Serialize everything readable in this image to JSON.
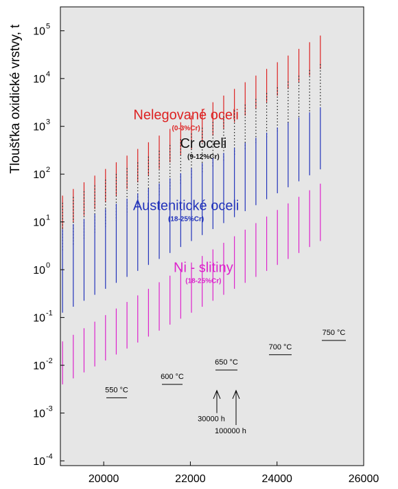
{
  "chart_data": {
    "type": "line",
    "ylabel": "Tloušťka oxidické vrstvy, t",
    "xlabel": "",
    "y_scale": "log",
    "xlim": [
      19000,
      26000
    ],
    "ylim_exp": [
      -4.1,
      5.5
    ],
    "x_ticks": [
      "20000",
      "22000",
      "24000",
      "26000"
    ],
    "y_ticks": [
      {
        "exp": 5,
        "base": "10",
        "sup": "5"
      },
      {
        "exp": 4,
        "base": "10",
        "sup": "4"
      },
      {
        "exp": 3,
        "base": "10",
        "sup": "3"
      },
      {
        "exp": 2,
        "base": "10",
        "sup": "2"
      },
      {
        "exp": 1,
        "base": "10",
        "sup": "1"
      },
      {
        "exp": 0,
        "base": "10",
        "sup": "0"
      },
      {
        "exp": -1,
        "base": "10",
        "sup": "-1"
      },
      {
        "exp": -2,
        "base": "10",
        "sup": "-2"
      },
      {
        "exp": -3,
        "base": "10",
        "sup": "-3"
      },
      {
        "exp": -4,
        "base": "10",
        "sup": "-4"
      }
    ],
    "grid": false,
    "background": "#e6e6e6",
    "band_x_range": [
      19050,
      25000
    ],
    "series": [
      {
        "name": "Nelegované oceli",
        "sub": "(0-3%Cr)",
        "color": "#dd2222",
        "style": "solid",
        "line_count": 25,
        "top_log_start": 1.55,
        "top_log_end": 4.9,
        "bottom_log_start": 0.85,
        "bottom_log_end": 4.2,
        "label_x": 21900,
        "label_log": 3.15
      },
      {
        "name": "Cr oceli",
        "sub": "(9-12%Cr)",
        "color": "#111111",
        "style": "dotted",
        "line_count": 25,
        "top_log_start": 1.4,
        "top_log_end": 4.3,
        "bottom_log_start": 0.4,
        "bottom_log_end": 3.4,
        "label_x": 22300,
        "label_log": 2.55
      },
      {
        "name": "Austenitické oceli",
        "sub": "(18-25%Cr)",
        "color": "#2233bb",
        "style": "solid",
        "line_count": 25,
        "top_log_start": 0.85,
        "top_log_end": 3.4,
        "bottom_log_start": -0.9,
        "bottom_log_end": 2.1,
        "label_x": 21900,
        "label_log": 1.25
      },
      {
        "name": "Ni - slitiny",
        "sub": "(18-25%Cr)",
        "color": "#dd22cc",
        "style": "solid",
        "line_count": 25,
        "top_log_start": -1.5,
        "top_log_end": 1.8,
        "bottom_log_start": -2.4,
        "bottom_log_end": 0.6,
        "label_x": 22300,
        "label_log": -0.05
      }
    ],
    "temperature_markers": [
      {
        "label": "550 °C",
        "x_start": 20150,
        "x_end": 20700,
        "log": -2.68
      },
      {
        "label": "600 °C",
        "x_start": 21700,
        "x_end": 22250,
        "log": -2.4
      },
      {
        "label": "650 °C",
        "x_start": 23200,
        "x_end": 23800,
        "log": -2.1
      },
      {
        "label": "700 °C",
        "x_start": 24750,
        "x_end": 25400,
        "log": -1.78
      },
      {
        "label": "750 °C",
        "x_start": 26300,
        "x_end": 26950,
        "log": -1.48
      }
    ],
    "annotations": [
      {
        "label": "30000 h",
        "arrow_x": 22600,
        "arrow_top_log": -2.5,
        "arrow_bottom_log": -3.0
      },
      {
        "label": "100000 h",
        "arrow_x": 23100,
        "arrow_top_log": -2.5,
        "arrow_bottom_log": -3.25
      }
    ]
  }
}
